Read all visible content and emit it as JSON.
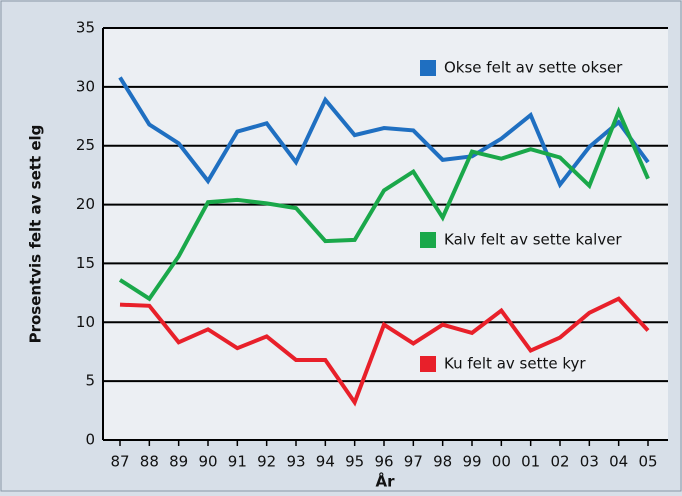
{
  "chart_data": {
    "type": "line",
    "x_label": "År",
    "y_label": "Prosentvis felt av sett elg",
    "categories": [
      "87",
      "88",
      "89",
      "90",
      "91",
      "92",
      "93",
      "94",
      "95",
      "96",
      "97",
      "98",
      "99",
      "00",
      "01",
      "02",
      "03",
      "04",
      "05"
    ],
    "series": [
      {
        "name": "Okse felt av sette okser",
        "color": "#1f6fc1",
        "values": [
          30.8,
          26.8,
          25.2,
          22.0,
          26.2,
          26.9,
          23.6,
          28.9,
          25.9,
          26.5,
          26.3,
          23.8,
          24.1,
          25.6,
          27.6,
          21.7,
          24.9,
          27.0,
          23.6
        ]
      },
      {
        "name": "Kalv felt av sette kalver",
        "color": "#1aa84a",
        "values": [
          13.6,
          12.0,
          15.6,
          20.2,
          20.4,
          20.1,
          19.7,
          16.9,
          17.0,
          21.2,
          22.8,
          18.9,
          24.5,
          23.9,
          24.7,
          24.0,
          21.6,
          27.9,
          22.2
        ]
      },
      {
        "name": "Ku felt av sette kyr",
        "color": "#e8202a",
        "values": [
          11.5,
          11.4,
          8.3,
          9.4,
          7.8,
          8.8,
          6.8,
          6.8,
          3.2,
          9.8,
          8.2,
          9.8,
          9.1,
          11.0,
          7.6,
          8.7,
          10.8,
          12.0,
          9.3
        ]
      }
    ],
    "ylim": [
      0,
      35
    ],
    "yticks": [
      0,
      5,
      10,
      15,
      20,
      25,
      30,
      35
    ],
    "grid": true
  }
}
